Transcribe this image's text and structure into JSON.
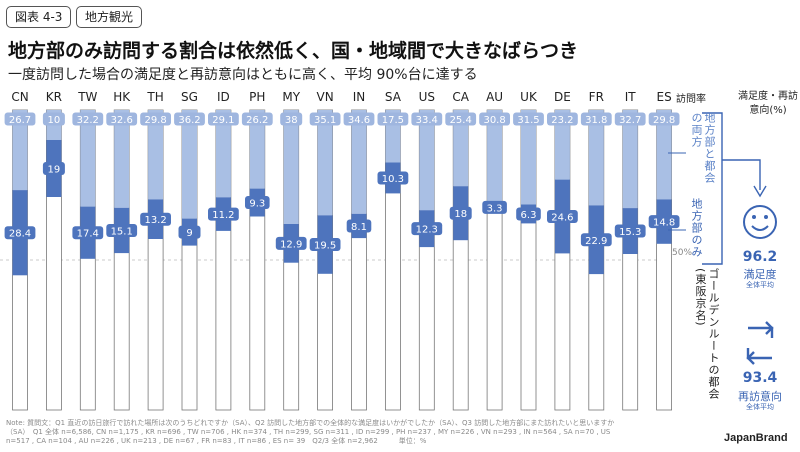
{
  "header": {
    "figure_tag": "図表 4-3",
    "category_tag": "地方観光",
    "title": "地方部のみ訪問する割合は依然低く、国・地域間で大きなばらつき",
    "subtitle": "一度訪問した場合の満足度と再訪意向はともに高く、平均 90%台に達する"
  },
  "side": {
    "rate_header": "訪問率",
    "sat_header": "満足度・再訪意向(%)",
    "label_both": "地方部と都会の両方",
    "label_only": "地方部のみ",
    "label_golden": "ゴールデンルートの都会(東阪京名)",
    "label_50": "50%",
    "satisfaction_value": "96.2",
    "satisfaction_label": "満足度",
    "satisfaction_sub": "全体平均",
    "revisit_value": "93.4",
    "revisit_label": "再訪意向",
    "revisit_sub": "全体平均"
  },
  "colors": {
    "both": "#a9bfe4",
    "only": "#4e74bd",
    "golden": "#ffffff",
    "accent": "#3a64b3"
  },
  "chart_data": {
    "type": "bar",
    "stacked": true,
    "orientation": "vertical",
    "unit": "%",
    "categories": [
      "CN",
      "KR",
      "TW",
      "HK",
      "TH",
      "SG",
      "ID",
      "PH",
      "MY",
      "VN",
      "IN",
      "SA",
      "US",
      "CA",
      "AU",
      "UK",
      "DE",
      "FR",
      "IT",
      "ES"
    ],
    "series": [
      {
        "name": "地方部のみ",
        "values": [
          28.4,
          19,
          17.4,
          15.1,
          13.2,
          9,
          11.2,
          9.3,
          12.9,
          19.5,
          8.1,
          10.3,
          12.3,
          18,
          3.3,
          6.3,
          24.6,
          22.9,
          15.3,
          14.8
        ]
      },
      {
        "name": "地方部と都会の両方",
        "values": [
          26.7,
          10,
          32.2,
          32.6,
          29.8,
          36.2,
          29.1,
          26.2,
          38,
          35.1,
          34.6,
          17.5,
          33.4,
          25.4,
          30.8,
          31.5,
          23.2,
          31.8,
          32.7,
          29.8
        ]
      },
      {
        "name": "ゴールデンルートの都会(東阪京名)"
      }
    ],
    "ylim": [
      0,
      100
    ],
    "reference_line": {
      "label": "50%",
      "value": 50
    }
  },
  "note": "Note: 質問文：Q1 直近の訪日旅行で訪れた場所は次のうちどれですか（SA）、Q2 訪問した地方部での全体的な満足度はいかがでしたか（SA）、Q3 訪問した地方部にまた訪れたいと思いますか（SA）　Q1 全体 n=6,586, CN n=1,175 , KR n=696 , TW n=706 , HK n=374 , TH n=299, SG n=311 , ID n=299 , PH n=237 , MY n=226 , VN n=293 , IN n=564 , SA n=70 , US n=517 , CA n=104 , AU n=226 , UK n=213 , DE n=67 , FR n=83 , IT n=86 , ES n= 39　Q2/3 全体 n=2,962　　　単位：%",
  "brand": "JapanBrand"
}
